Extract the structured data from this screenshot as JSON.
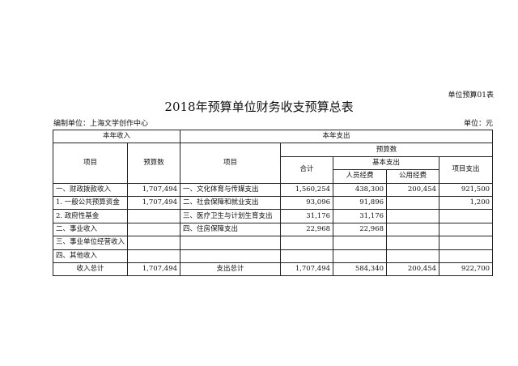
{
  "doc": {
    "tag": "单位预算01表",
    "title": "2018年预算单位财务收支预算总表",
    "org": "编制单位：上海文学创作中心",
    "unit": "单位：元"
  },
  "header": {
    "income": "本年收入",
    "expense": "本年支出",
    "item": "项目",
    "budget": "预算数",
    "item2": "项目",
    "budget2": "预算数",
    "total": "合计",
    "basic": "基本支出",
    "personnel": "人员经费",
    "public": "公用经费",
    "project": "项目支出"
  },
  "rows": [
    {
      "in_item": "一、财政拨款收入",
      "in_amt": "1,707,494",
      "ex_item": "一、文化体育与传媒支出",
      "total": "1,560,254",
      "personnel": "438,300",
      "public": "200,454",
      "project": "921,500"
    },
    {
      "in_item": "1. 一般公共预算资金",
      "in_amt": "1,707,494",
      "ex_item": "二、社会保障和就业支出",
      "total": "93,096",
      "personnel": "91,896",
      "public": "",
      "project": "1,200"
    },
    {
      "in_item": "2. 政府性基金",
      "in_amt": "",
      "ex_item": "三、医疗卫生与计划生育支出",
      "total": "31,176",
      "personnel": "31,176",
      "public": "",
      "project": ""
    },
    {
      "in_item": "二、事业收入",
      "in_amt": "",
      "ex_item": "四、住房保障支出",
      "total": "22,968",
      "personnel": "22,968",
      "public": "",
      "project": ""
    },
    {
      "in_item": "三、事业单位经营收入",
      "in_amt": "",
      "ex_item": "",
      "total": "",
      "personnel": "",
      "public": "",
      "project": ""
    },
    {
      "in_item": "四、其他收入",
      "in_amt": "",
      "ex_item": "",
      "total": "",
      "personnel": "",
      "public": "",
      "project": ""
    }
  ],
  "totals": {
    "in_label": "收入总计",
    "in_amt": "1,707,494",
    "ex_label": "支出总计",
    "total": "1,707,494",
    "personnel": "584,340",
    "public": "200,454",
    "project": "922,700"
  }
}
